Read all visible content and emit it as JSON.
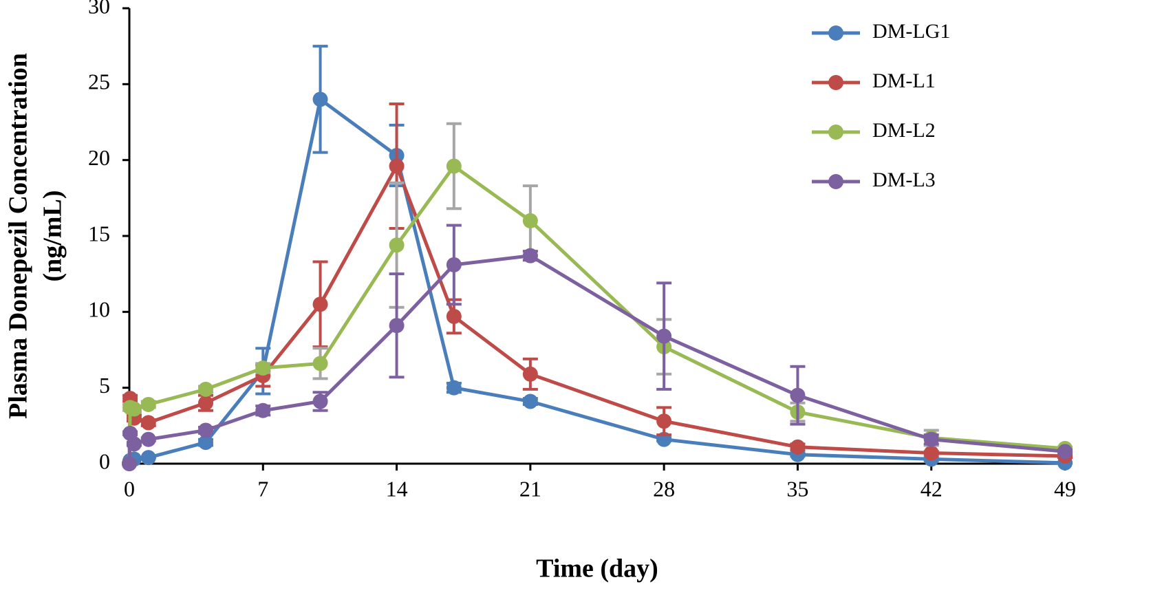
{
  "chart_data": {
    "type": "line",
    "xlabel": "Time (day)",
    "ylabel": [
      "Plasma Donepezil Concentration",
      "(ng/mL)"
    ],
    "x": [
      0,
      0.04,
      0.25,
      1,
      4,
      7,
      10,
      14,
      17,
      21,
      28,
      35,
      42,
      49
    ],
    "xlim": [
      0,
      49
    ],
    "xticks": [
      0,
      7,
      14,
      21,
      28,
      35,
      42,
      49
    ],
    "ylim": [
      0,
      30
    ],
    "yticks": [
      0,
      5,
      10,
      15,
      20,
      25,
      30
    ],
    "legend": "upper right",
    "series": [
      {
        "name": "DM-LG1",
        "color": "#4a7ebb",
        "error_color": "#4a7ebb",
        "values": [
          0,
          0.2,
          0.3,
          0.4,
          1.4,
          6.1,
          24.0,
          20.3,
          5.0,
          4.1,
          1.6,
          0.6,
          0.3,
          0.05
        ],
        "errors": [
          0,
          0,
          0,
          0,
          0.2,
          1.5,
          3.5,
          2.0,
          0.3,
          0.2,
          0.1,
          0.1,
          0.1,
          0
        ]
      },
      {
        "name": "DM-L1",
        "color": "#be4b48",
        "error_color": "#be4b48",
        "values": [
          0,
          4.3,
          3.0,
          2.7,
          4.0,
          5.8,
          10.5,
          19.6,
          9.7,
          5.9,
          2.8,
          1.1,
          0.7,
          0.5
        ],
        "errors": [
          0,
          0.2,
          0.2,
          0.2,
          0.5,
          0.7,
          2.8,
          4.1,
          1.1,
          1.0,
          0.9,
          0.2,
          0.1,
          0.1
        ]
      },
      {
        "name": "DM-L2",
        "color": "#98b954",
        "error_color": "#a6a6a6",
        "values": [
          0,
          3.7,
          3.6,
          3.9,
          4.9,
          6.3,
          6.6,
          14.4,
          19.6,
          16.0,
          7.7,
          3.4,
          1.7,
          1.0
        ],
        "errors": [
          0,
          0.2,
          0.2,
          0.2,
          0.2,
          0.3,
          1.0,
          4.1,
          2.8,
          2.3,
          1.8,
          0.6,
          0.5,
          0.1
        ]
      },
      {
        "name": "DM-L3",
        "color": "#7d60a0",
        "error_color": "#7d60a0",
        "values": [
          0,
          2.0,
          1.3,
          1.6,
          2.2,
          3.5,
          4.1,
          9.1,
          13.1,
          13.7,
          8.4,
          4.5,
          1.6,
          0.8
        ],
        "errors": [
          0,
          0.1,
          0.1,
          0.1,
          0.2,
          0.3,
          0.6,
          3.4,
          2.6,
          0.3,
          3.5,
          1.9,
          0.3,
          0.1
        ]
      }
    ]
  }
}
